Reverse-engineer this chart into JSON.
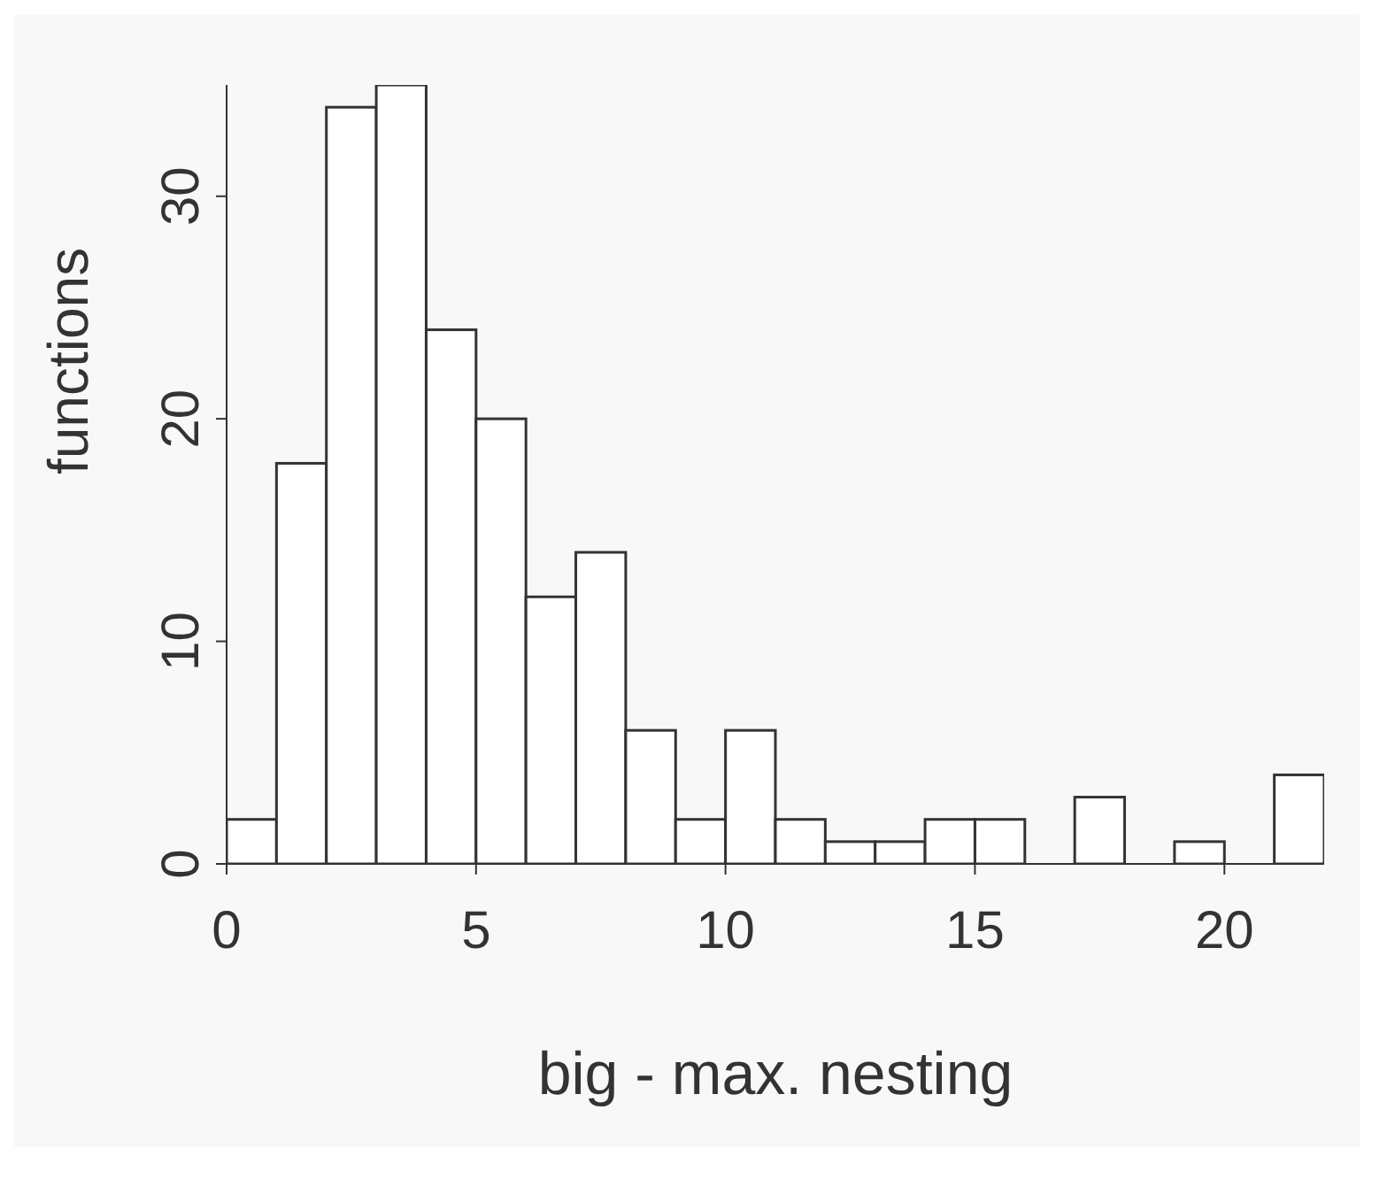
{
  "chart_data": {
    "type": "histogram",
    "xlabel": "big - max. nesting",
    "ylabel": "functions",
    "bins": [
      0,
      1,
      2,
      3,
      4,
      5,
      6,
      7,
      8,
      9,
      10,
      11,
      12,
      13,
      14,
      15,
      16,
      17,
      18,
      19,
      20,
      21,
      22
    ],
    "values": [
      2,
      18,
      34,
      35,
      24,
      20,
      12,
      14,
      6,
      2,
      6,
      2,
      1,
      1,
      2,
      2,
      0,
      3,
      0,
      1,
      0,
      4
    ],
    "color": "#ffffff",
    "xlim": [
      0,
      22
    ],
    "xticks": [
      0,
      5,
      10,
      15,
      20
    ],
    "ylim": [
      0,
      35
    ],
    "yticks": [
      0,
      10,
      20,
      30
    ],
    "grid": false
  }
}
